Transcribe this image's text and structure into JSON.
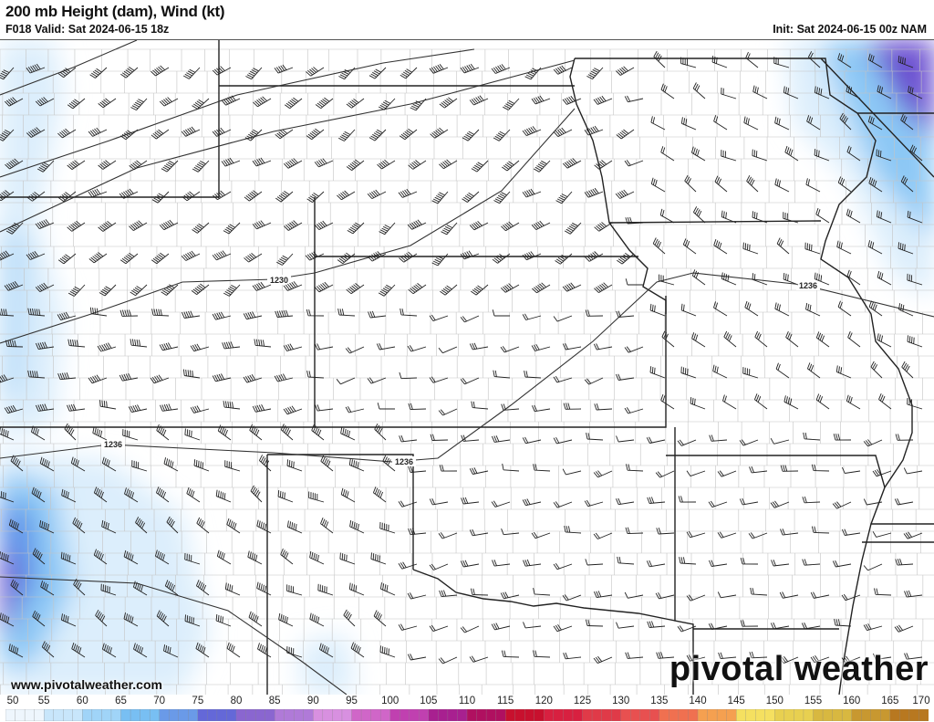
{
  "header": {
    "title": "200 mb Height (dam), Wind (kt)",
    "valid": "F018 Valid: Sat 2024-06-15 18z",
    "init": "Init: Sat 2024-06-15 00z NAM"
  },
  "map": {
    "contour_labels": [
      "1230",
      "1236",
      "1236",
      "1236"
    ],
    "shading_colors": {
      "light": "#dceefc",
      "mid": "#8cc8f5",
      "blue": "#5a8ee8",
      "purple": "#6a4fd0"
    },
    "line_color": "#333333",
    "county_color": "#bbbbbb"
  },
  "footer": {
    "url": "www.pivotalweather.com",
    "brand": "pivotal weather"
  },
  "colorbar": {
    "labels": [
      "50",
      "55",
      "60",
      "65",
      "70",
      "75",
      "80",
      "85",
      "90",
      "95",
      "100",
      "105",
      "110",
      "115",
      "120",
      "125",
      "130",
      "135",
      "140",
      "145",
      "150",
      "155",
      "160",
      "165",
      "170"
    ],
    "colors": [
      "#eef6fd",
      "#c8e6fb",
      "#a0d4f8",
      "#78bff3",
      "#6a9ae8",
      "#6468d8",
      "#8a66d0",
      "#b07ad8",
      "#d890e0",
      "#d066c8",
      "#c040b0",
      "#a82090",
      "#b01060",
      "#c8102e",
      "#d82040",
      "#e03a48",
      "#e85050",
      "#f07050",
      "#f5a050",
      "#f5e060",
      "#e8d050",
      "#d8b840",
      "#c89830",
      "#b87820",
      "#a85810"
    ]
  }
}
